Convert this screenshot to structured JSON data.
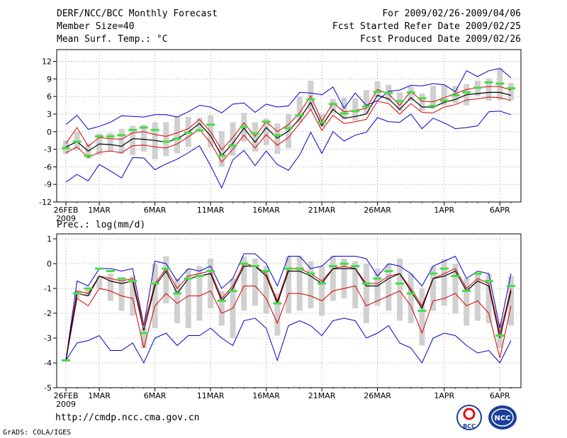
{
  "header": {
    "title": "DERF/NCC/BCC Monthly Forecast",
    "member_size": "Member Size=40",
    "variable": "Mean Surf. Temp.: °C",
    "period": "For 2009/02/26-2009/04/06",
    "started": "Fcst Started Refer Date 2009/02/25",
    "produced": "Fcst Produced Date 2009/02/26"
  },
  "footer": {
    "url": "http://cmdp.ncc.cma.gov.cn",
    "credit": "GrADS: COLA/IGES",
    "logo_left_text": "BCC",
    "logo_right_text": "NCC"
  },
  "colors": {
    "envelope": "#0000cc",
    "spread": "#dd0000",
    "mean": "#000000",
    "marker": "#44dd44",
    "bar": "#d0d0d0",
    "grid": "#888888"
  },
  "chart_data": [
    {
      "type": "line",
      "title": "Mean Surf. Temp.: °C",
      "ylim": [
        -12,
        14
      ],
      "yticks": [
        -12,
        -9,
        -6,
        -3,
        0,
        3,
        6,
        9,
        12
      ],
      "x_tick_labels": [
        {
          "day": 0,
          "label": "26FEB",
          "sub": "2009"
        },
        {
          "day": 3,
          "label": "1MAR"
        },
        {
          "day": 8,
          "label": "6MAR"
        },
        {
          "day": 13,
          "label": "11MAR"
        },
        {
          "day": 18,
          "label": "16MAR"
        },
        {
          "day": 23,
          "label": "21MAR"
        },
        {
          "day": 28,
          "label": "26MAR"
        },
        {
          "day": 34,
          "label": "1APR"
        },
        {
          "day": 39,
          "label": "6APR"
        }
      ],
      "series": [
        {
          "name": "max",
          "values": [
            1.2,
            2.8,
            0.4,
            0.9,
            1.6,
            2.7,
            2.6,
            2.5,
            2.9,
            2.9,
            2.5,
            3.4,
            4.5,
            4.2,
            3.2,
            4.7,
            4.9,
            3.3,
            4.7,
            4.2,
            4.4,
            6.7,
            6.6,
            6.3,
            7.6,
            4.0,
            6.6,
            4.5,
            5.3,
            6.9,
            7.1,
            7.9,
            7.8,
            8.2,
            8.0,
            6.8,
            10.4,
            9.4,
            10.4,
            10.8,
            9.2
          ]
        },
        {
          "name": "upper",
          "values": [
            -2.0,
            0.7,
            -2.5,
            -1.0,
            -1.2,
            -1.3,
            -0.2,
            0.0,
            -0.5,
            -0.8,
            -0.2,
            0.5,
            2.1,
            0.0,
            -3.1,
            -1.0,
            1.5,
            -0.8,
            1.7,
            0.0,
            1.2,
            3.2,
            6.1,
            1.8,
            4.9,
            3.4,
            3.6,
            4.0,
            7.2,
            6.4,
            4.5,
            6.9,
            5.2,
            5.1,
            5.8,
            6.5,
            7.2,
            7.5,
            7.7,
            7.7,
            7.1
          ]
        },
        {
          "name": "mean",
          "values": [
            -2.6,
            -1.7,
            -3.3,
            -2.1,
            -2.2,
            -2.5,
            -1.2,
            -1.3,
            -1.5,
            -1.8,
            -1.2,
            -0.1,
            1.4,
            -0.7,
            -4.1,
            -2.0,
            0.6,
            -1.8,
            0.7,
            -1.1,
            0.1,
            2.2,
            5.0,
            1.0,
            3.8,
            2.3,
            2.6,
            3.0,
            6.2,
            5.6,
            3.8,
            5.8,
            4.2,
            4.2,
            5.0,
            5.5,
            6.3,
            6.5,
            6.7,
            6.7,
            6.2
          ]
        },
        {
          "name": "lower",
          "values": [
            -3.6,
            -2.6,
            -4.4,
            -3.5,
            -3.3,
            -3.6,
            -2.4,
            -2.3,
            -2.6,
            -2.8,
            -2.1,
            -0.9,
            0.4,
            -1.9,
            -5.2,
            -3.0,
            -0.6,
            -2.8,
            -0.5,
            -2.3,
            -1.0,
            1.4,
            3.8,
            0.2,
            2.8,
            1.4,
            1.7,
            2.1,
            5.2,
            4.8,
            3.0,
            4.8,
            3.3,
            3.2,
            4.2,
            4.6,
            5.4,
            5.6,
            5.9,
            5.8,
            5.3
          ]
        },
        {
          "name": "min",
          "values": [
            -8.6,
            -7.3,
            -8.4,
            -5.6,
            -6.7,
            -7.9,
            -4.4,
            -4.5,
            -6.5,
            -5.5,
            -4.7,
            -3.6,
            -2.4,
            -5.8,
            -9.6,
            -4.8,
            -3.2,
            -5.8,
            -3.3,
            -5.6,
            -6.6,
            -4.0,
            -0.1,
            -3.7,
            0.0,
            -1.6,
            -0.6,
            -0.1,
            2.4,
            1.7,
            1.6,
            3.0,
            0.5,
            2.3,
            1.5,
            0.5,
            0.7,
            1.0,
            3.4,
            3.5,
            2.9
          ]
        },
        {
          "name": "bar_high",
          "values": [
            -1.5,
            0.0,
            -2.0,
            -0.3,
            -0.2,
            0.5,
            1.0,
            1.2,
            1.6,
            1.6,
            2.7,
            2.5,
            2.4,
            2.8,
            0.1,
            1.6,
            3.2,
            1.6,
            2.2,
            1.4,
            3.0,
            6.0,
            8.7,
            3.1,
            5.6,
            5.8,
            5.7,
            7.1,
            8.6,
            8.0,
            6.7,
            7.7,
            6.5,
            7.8,
            7.9,
            7.8,
            8.1,
            8.7,
            9.1,
            10.8,
            8.3
          ]
        },
        {
          "name": "bar_low",
          "values": [
            -3.8,
            -3.2,
            -4.6,
            -4.0,
            -3.3,
            -3.8,
            -4.0,
            -3.4,
            -4.7,
            -4.2,
            -3.7,
            -2.6,
            0.2,
            -2.7,
            -6.0,
            -4.1,
            -1.7,
            -3.4,
            -2.3,
            -3.8,
            -2.8,
            1.6,
            3.7,
            0.8,
            3.1,
            2.1,
            1.9,
            3.0,
            5.9,
            5.2,
            3.5,
            5.2,
            3.5,
            3.9,
            4.5,
            4.8,
            4.5,
            6.1,
            5.3,
            5.4,
            5.4
          ]
        },
        {
          "name": "marker",
          "values": [
            -2.8,
            -1.7,
            -4.1,
            -0.8,
            -0.8,
            -0.6,
            0.3,
            0.7,
            0.3,
            -1.7,
            -1.2,
            -0.2,
            0.2,
            1.2,
            -4.1,
            -2.4,
            0.8,
            -0.3,
            1.7,
            -0.6,
            0.6,
            2.8,
            5.5,
            1.6,
            4.7,
            3.1,
            3.5,
            4.3,
            6.8,
            6.6,
            5.2,
            6.7,
            5.7,
            4.4,
            5.3,
            6.2,
            6.7,
            7.5,
            8.4,
            8.2,
            7.4
          ]
        }
      ]
    },
    {
      "type": "line",
      "title": "Prec.: log(mm/d)",
      "ylim": [
        -5,
        1.2
      ],
      "yticks": [
        -5,
        -4,
        -3,
        -2,
        -1,
        0,
        1
      ],
      "x_tick_labels": [
        {
          "day": 0,
          "label": "26FEB",
          "sub": "2009"
        },
        {
          "day": 3,
          "label": "1MAR"
        },
        {
          "day": 8,
          "label": "6MAR"
        },
        {
          "day": 13,
          "label": "11MAR"
        },
        {
          "day": 18,
          "label": "16MAR"
        },
        {
          "day": 23,
          "label": "21MAR"
        },
        {
          "day": 28,
          "label": "26MAR"
        },
        {
          "day": 34,
          "label": "1APR"
        },
        {
          "day": 39,
          "label": "6APR"
        }
      ],
      "series": [
        {
          "name": "max",
          "values": [
            -3.9,
            -0.7,
            -0.9,
            -0.2,
            -0.2,
            -0.3,
            -0.2,
            -2.5,
            0.1,
            0.0,
            -0.7,
            -0.2,
            -0.3,
            -0.1,
            -1.0,
            -0.6,
            0.4,
            0.4,
            0.0,
            -0.9,
            0.3,
            0.3,
            -0.2,
            -0.1,
            0.3,
            0.3,
            0.3,
            0.2,
            -0.5,
            0.0,
            -0.1,
            -0.4,
            -0.9,
            -0.1,
            0.1,
            0.3,
            -0.6,
            -0.3,
            -0.4,
            -2.6,
            -0.4
          ]
        },
        {
          "name": "upper",
          "values": [
            -3.9,
            -1.1,
            -1.2,
            -0.5,
            -0.6,
            -0.7,
            -0.6,
            -2.5,
            -0.8,
            -0.2,
            -1.0,
            -0.5,
            -0.4,
            -0.3,
            -1.4,
            -0.9,
            0.0,
            -0.1,
            -0.4,
            -1.5,
            -0.2,
            -0.2,
            -0.4,
            -0.7,
            -0.2,
            -0.1,
            -0.2,
            -0.8,
            -0.8,
            -0.5,
            -0.4,
            -1.0,
            -1.7,
            -0.6,
            -0.4,
            -0.2,
            -1.0,
            -0.6,
            -0.8,
            -2.8,
            -1.0
          ]
        },
        {
          "name": "mean",
          "values": [
            -3.9,
            -1.2,
            -1.3,
            -0.5,
            -0.7,
            -0.8,
            -0.7,
            -2.7,
            -0.9,
            -0.3,
            -1.2,
            -0.6,
            -0.5,
            -0.4,
            -1.5,
            -1.0,
            -0.1,
            -0.1,
            -0.5,
            -1.6,
            -0.3,
            -0.3,
            -0.5,
            -0.8,
            -0.2,
            -0.2,
            -0.2,
            -0.9,
            -0.9,
            -0.6,
            -0.4,
            -1.1,
            -1.8,
            -0.6,
            -0.5,
            -0.3,
            -1.1,
            -0.7,
            -0.9,
            -3.0,
            -1.1
          ]
        },
        {
          "name": "lower",
          "values": [
            -3.9,
            -1.4,
            -1.7,
            -1.0,
            -1.1,
            -1.3,
            -1.4,
            -3.4,
            -1.7,
            -1.2,
            -1.6,
            -1.3,
            -1.3,
            -1.1,
            -2.0,
            -1.8,
            -0.9,
            -0.9,
            -1.4,
            -2.4,
            -1.2,
            -1.2,
            -1.3,
            -1.5,
            -1.1,
            -1.0,
            -0.9,
            -1.7,
            -1.5,
            -1.3,
            -1.1,
            -1.7,
            -2.8,
            -1.5,
            -1.4,
            -1.2,
            -1.7,
            -1.5,
            -2.0,
            -3.8,
            -1.7
          ]
        },
        {
          "name": "min",
          "values": [
            -3.9,
            -3.2,
            -3.1,
            -2.9,
            -3.5,
            -3.5,
            -3.2,
            -4.0,
            -3.0,
            -2.8,
            -3.3,
            -2.9,
            -2.9,
            -2.6,
            -3.0,
            -3.3,
            -2.3,
            -2.2,
            -2.6,
            -3.9,
            -2.5,
            -2.3,
            -2.5,
            -2.9,
            -2.3,
            -2.2,
            -2.3,
            -3.0,
            -2.8,
            -2.5,
            -3.2,
            -3.4,
            -4.0,
            -3.0,
            -2.8,
            -2.9,
            -3.3,
            -3.6,
            -3.5,
            -4.0,
            -3.1
          ]
        },
        {
          "name": "bar_high",
          "values": [
            -3.9,
            -1.1,
            -1.0,
            -0.5,
            -0.4,
            -0.6,
            -0.5,
            -2.6,
            0.0,
            0.3,
            -0.6,
            -0.2,
            -0.1,
            0.2,
            -1.1,
            -0.6,
            0.3,
            0.2,
            -0.1,
            -1.2,
            0.3,
            0.3,
            0.1,
            -0.1,
            0.3,
            0.2,
            0.1,
            0.0,
            -0.2,
            0.0,
            0.2,
            -0.4,
            -1.0,
            -0.1,
            0.2,
            0.0,
            -0.6,
            -0.4,
            -0.4,
            -2.4,
            -0.5
          ]
        },
        {
          "name": "bar_low",
          "values": [
            -3.9,
            -1.4,
            -1.3,
            -1.0,
            -1.5,
            -1.9,
            -2.1,
            -3.4,
            -2.6,
            -1.6,
            -2.4,
            -2.6,
            -2.3,
            -1.8,
            -2.5,
            -3.0,
            -1.9,
            -1.7,
            -2.0,
            -2.9,
            -2.0,
            -1.9,
            -1.8,
            -2.1,
            -1.5,
            -1.4,
            -1.8,
            -2.4,
            -1.7,
            -1.9,
            -2.3,
            -2.4,
            -3.3,
            -1.9,
            -1.7,
            -2.0,
            -2.5,
            -2.3,
            -2.4,
            -3.4,
            -2.5
          ]
        },
        {
          "name": "marker",
          "values": [
            -3.9,
            -1.2,
            -1.0,
            -0.2,
            -0.3,
            -0.6,
            -0.7,
            -2.8,
            -0.8,
            -0.2,
            -1.2,
            -0.6,
            -0.5,
            -0.3,
            -1.5,
            -1.1,
            0.0,
            -0.1,
            -0.3,
            -1.6,
            -0.2,
            -0.2,
            -0.4,
            -0.8,
            -0.1,
            0.0,
            -0.1,
            -0.8,
            -0.6,
            -0.3,
            -0.8,
            -1.2,
            -1.9,
            -0.4,
            -0.2,
            -0.5,
            -1.1,
            -0.4,
            -0.7,
            -2.9,
            -0.9
          ]
        }
      ]
    }
  ]
}
